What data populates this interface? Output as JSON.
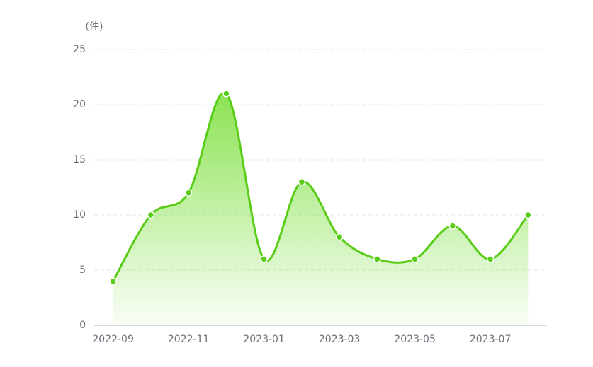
{
  "chart_data": {
    "type": "line",
    "y_unit_label": "(件)",
    "categories": [
      "2022-09",
      null,
      "2022-11",
      null,
      "2023-01",
      null,
      "2023-03",
      null,
      "2023-05",
      null,
      "2023-07",
      null
    ],
    "values": [
      4,
      10,
      12,
      21,
      6,
      13,
      8,
      6,
      6,
      9,
      6,
      10
    ],
    "color": "#58cc16",
    "smooth": true,
    "area": true,
    "ylim": [
      0,
      25
    ],
    "yticks": [
      0,
      5,
      10,
      15,
      20,
      25
    ],
    "grid": true
  }
}
